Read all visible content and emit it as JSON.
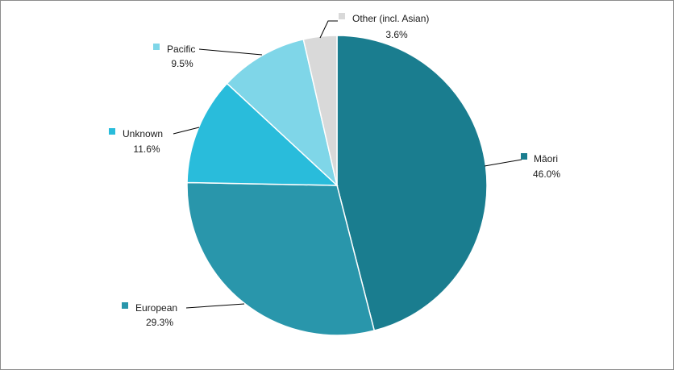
{
  "chart_data": {
    "type": "pie",
    "start": "12 o'clock, clockwise",
    "slices": [
      {
        "label": "Māori",
        "value": 46.0,
        "display": "46.0%",
        "color": "#1a7d8f"
      },
      {
        "label": "European",
        "value": 29.3,
        "display": "29.3%",
        "color": "#2996ab"
      },
      {
        "label": "Unknown",
        "value": 11.6,
        "display": "11.6%",
        "color": "#29bcdb"
      },
      {
        "label": "Pacific",
        "value": 9.5,
        "display": "9.5%",
        "color": "#7fd6e8"
      },
      {
        "label": "Other (incl. Asian)",
        "value": 3.6,
        "display": "3.6%",
        "color": "#d9d9d9"
      }
    ],
    "legend": "none (data labels with leader lines)",
    "slice_border_color": "#ffffff"
  }
}
